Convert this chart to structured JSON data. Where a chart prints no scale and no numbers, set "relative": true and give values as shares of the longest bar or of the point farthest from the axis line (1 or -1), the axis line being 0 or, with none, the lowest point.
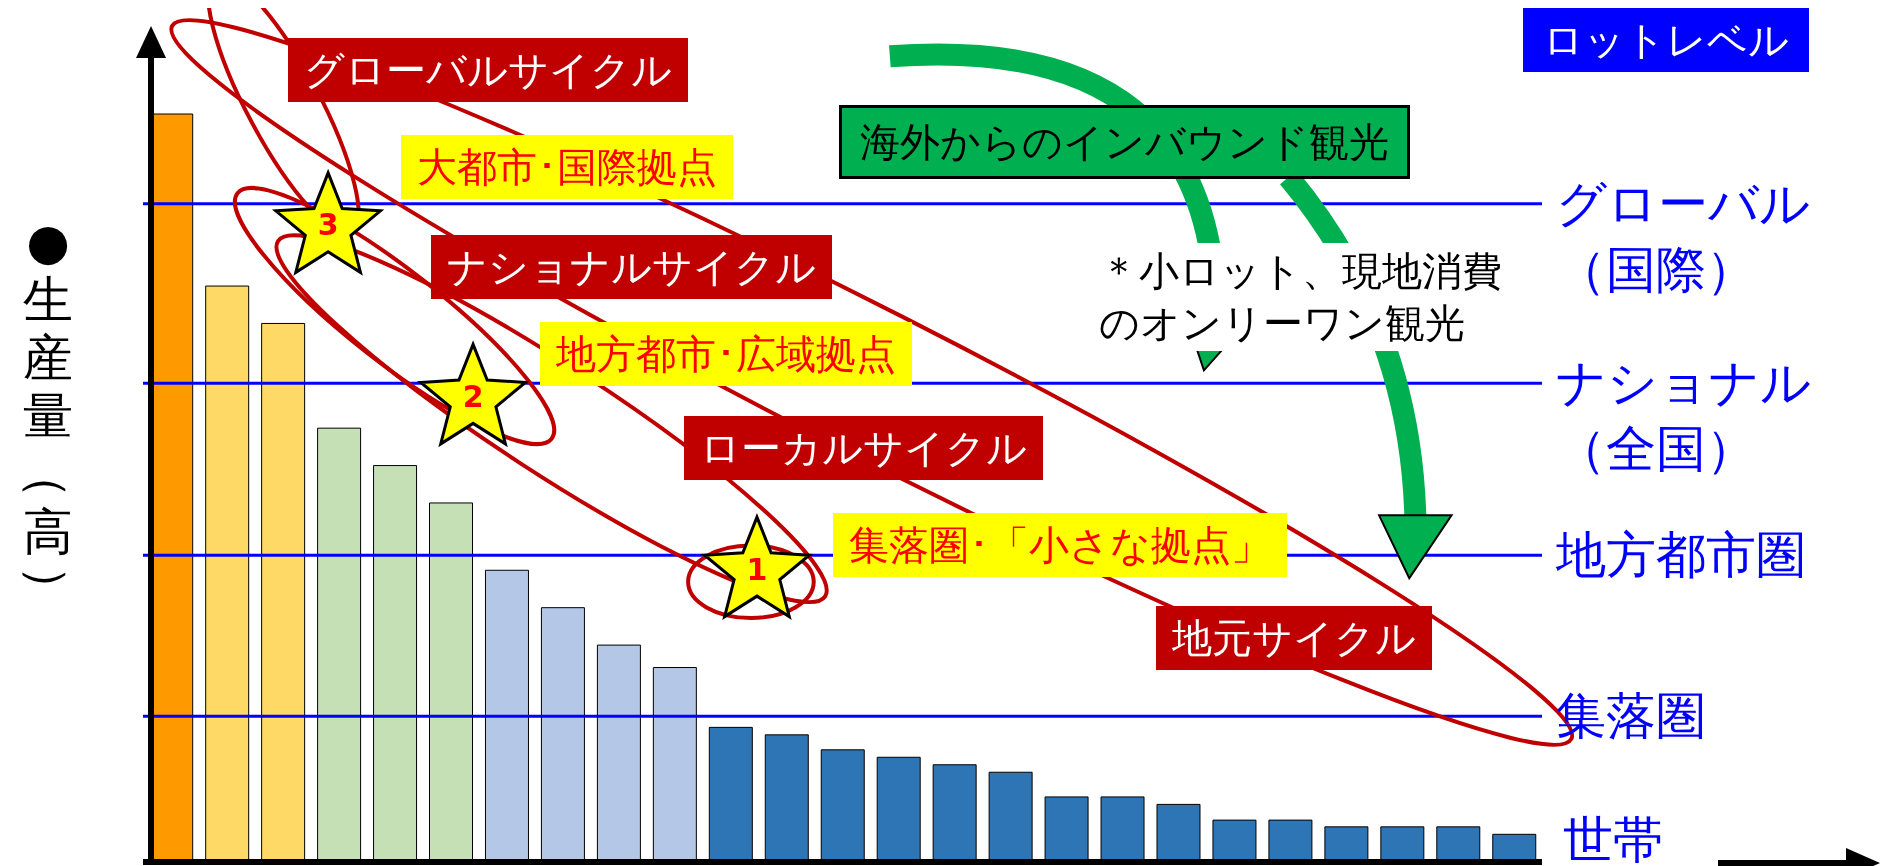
{
  "chart_data": {
    "type": "bar",
    "relative": true,
    "ylabel": "●生産量（高）",
    "categories": [
      null,
      null,
      null,
      null,
      null,
      null,
      null,
      null,
      null,
      null,
      null,
      null,
      null,
      null,
      null,
      null,
      null,
      null,
      null,
      null,
      null,
      null,
      null,
      null,
      null
    ],
    "values": [
      1,
      0.77,
      0.72,
      0.58,
      0.53,
      0.48,
      0.39,
      0.34,
      0.29,
      0.26,
      0.18,
      0.17,
      0.15,
      0.14,
      0.13,
      0.12,
      0.087,
      0.087,
      0.077,
      0.056,
      0.056,
      0.047,
      0.047,
      0.047,
      0.037
    ],
    "colors": [
      "#ff9900",
      "#ffd966",
      "#ffd966",
      "#c5e0b4",
      "#c5e0b4",
      "#c5e0b4",
      "#b4c7e7",
      "#b4c7e7",
      "#b4c7e7",
      "#b4c7e7",
      "#2e75b6",
      "#2e75b6",
      "#2e75b6",
      "#2e75b6",
      "#2e75b6",
      "#2e75b6",
      "#2e75b6",
      "#2e75b6",
      "#2e75b6",
      "#2e75b6",
      "#2e75b6",
      "#2e75b6",
      "#2e75b6",
      "#2e75b6",
      "#2e75b6"
    ],
    "ref_lines": [
      {
        "axis": "y",
        "value": 0.88,
        "label": "グローバル（国際）",
        "color": "#0000ff"
      },
      {
        "axis": "y",
        "value": 0.64,
        "label": "ナショナル（全国）",
        "color": "#0000ff"
      },
      {
        "axis": "y",
        "value": 0.41,
        "label": "地方都市圏",
        "color": "#0000ff"
      },
      {
        "axis": "y",
        "value": 0.195,
        "label": "集落圏",
        "color": "#0000ff"
      }
    ],
    "annotations": [
      "グローバルサイクル",
      "大都市･国際拠点",
      "ナショナルサイクル",
      "地方都市･広域拠点",
      "ローカルサイクル",
      "集落圏･「小さな拠点」",
      "地元サイクル",
      "海外からのインバウンド観光",
      "＊小ロット、現地消費のオンリーワン観光",
      "ロットレベル",
      "世帯",
      "3",
      "2",
      "1"
    ]
  }
}
